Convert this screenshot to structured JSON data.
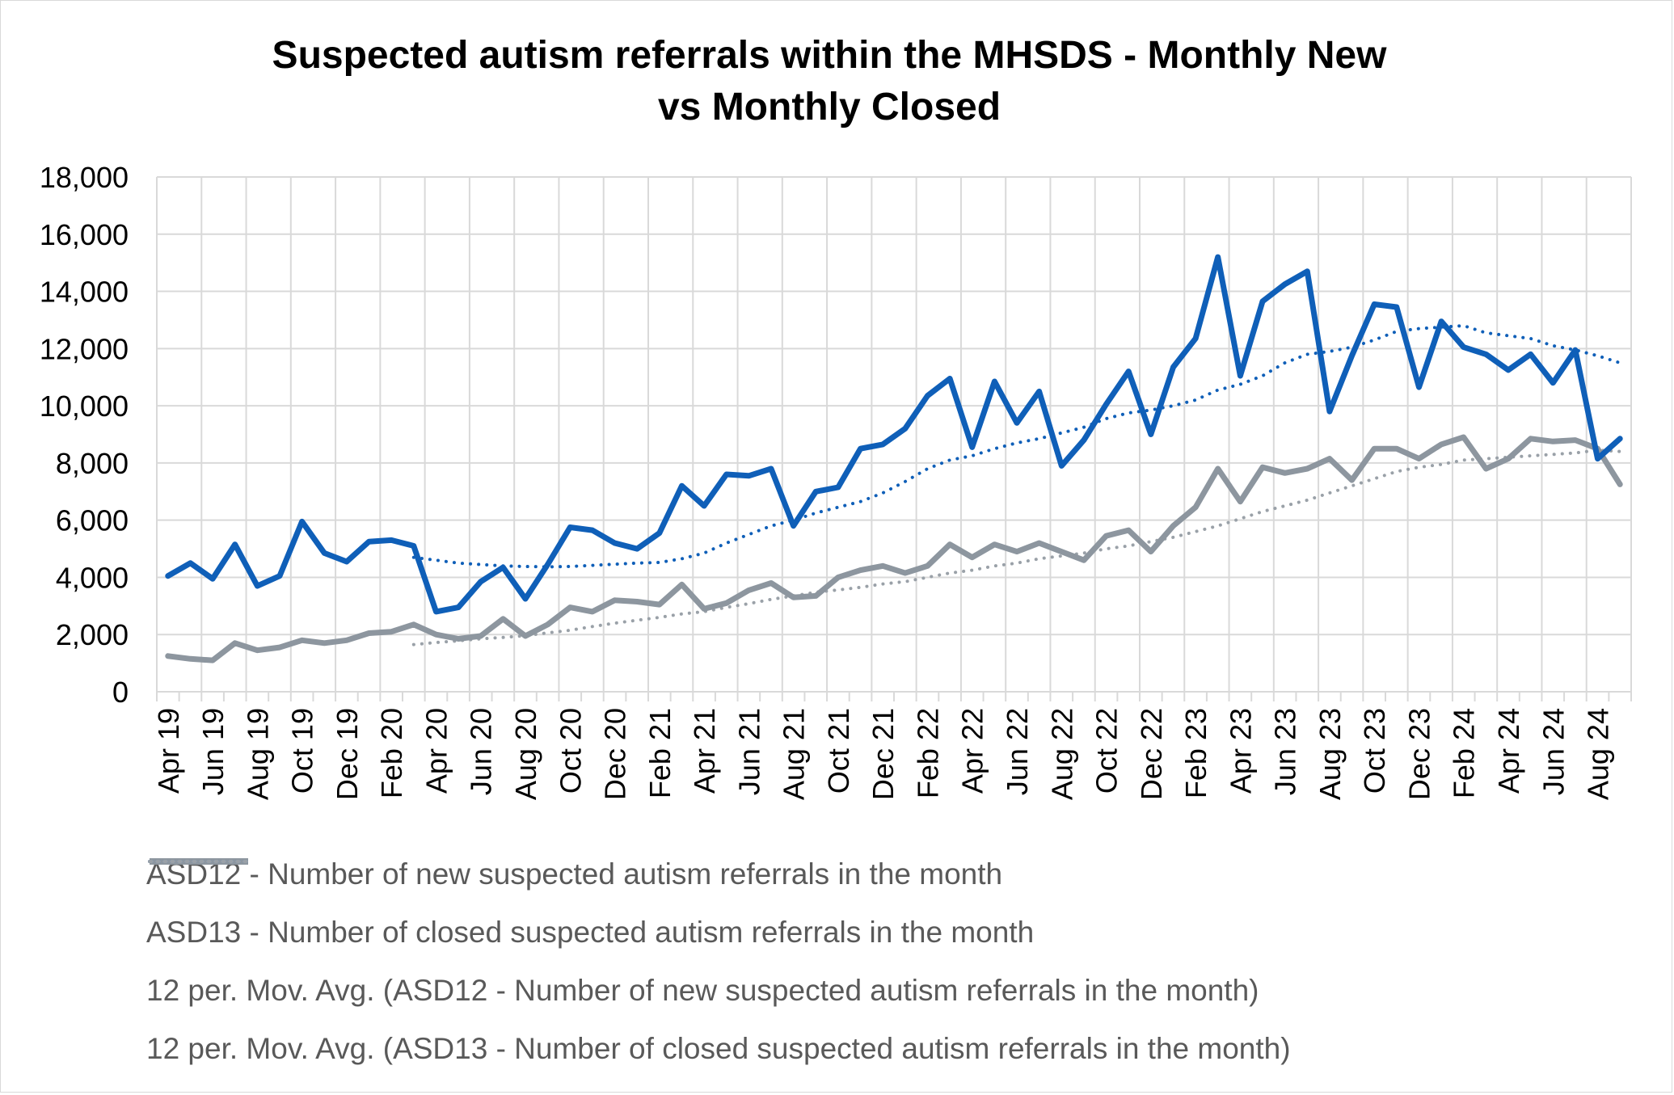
{
  "chart_data": {
    "type": "line",
    "title_line1": "Suspected autism referrals within the MHSDS - Monthly New",
    "title_line2": "vs Monthly Closed",
    "xlabel": "",
    "ylabel": "",
    "ylim": [
      0,
      18000
    ],
    "yticks": [
      0,
      2000,
      4000,
      6000,
      8000,
      10000,
      12000,
      14000,
      16000,
      18000
    ],
    "ytick_labels": [
      "0",
      "2,000",
      "4,000",
      "6,000",
      "8,000",
      "10,000",
      "12,000",
      "14,000",
      "16,000",
      "18,000"
    ],
    "grid": true,
    "legend_position": "bottom",
    "x_tick_labels": [
      "Apr 19",
      "Jun 19",
      "Aug 19",
      "Oct 19",
      "Dec 19",
      "Feb 20",
      "Apr 20",
      "Jun 20",
      "Aug 20",
      "Oct 20",
      "Dec 20",
      "Feb 21",
      "Apr 21",
      "Jun 21",
      "Aug 21",
      "Oct 21",
      "Dec 21",
      "Feb 22",
      "Apr 22",
      "Jun 22",
      "Aug 22",
      "Oct 22",
      "Dec 22",
      "Feb 23",
      "Apr 23",
      "Jun 23",
      "Aug 23",
      "Oct 23",
      "Dec 23",
      "Feb 24",
      "Apr 24",
      "Jun 24",
      "Aug 24"
    ],
    "months": [
      "Apr 19",
      "May 19",
      "Jun 19",
      "Jul 19",
      "Aug 19",
      "Sep 19",
      "Oct 19",
      "Nov 19",
      "Dec 19",
      "Jan 20",
      "Feb 20",
      "Mar 20",
      "Apr 20",
      "May 20",
      "Jun 20",
      "Jul 20",
      "Aug 20",
      "Sep 20",
      "Oct 20",
      "Nov 20",
      "Dec 20",
      "Jan 21",
      "Feb 21",
      "Mar 21",
      "Apr 21",
      "May 21",
      "Jun 21",
      "Jul 21",
      "Aug 21",
      "Sep 21",
      "Oct 21",
      "Nov 21",
      "Dec 21",
      "Jan 22",
      "Feb 22",
      "Mar 22",
      "Apr 22",
      "May 22",
      "Jun 22",
      "Jul 22",
      "Aug 22",
      "Sep 22",
      "Oct 22",
      "Nov 22",
      "Dec 22",
      "Jan 23",
      "Feb 23",
      "Mar 23",
      "Apr 23",
      "May 23",
      "Jun 23",
      "Jul 23",
      "Aug 23",
      "Sep 23",
      "Oct 23",
      "Nov 23",
      "Dec 23",
      "Jan 24",
      "Feb 24",
      "Mar 24",
      "Apr 24",
      "May 24",
      "Jun 24",
      "Jul 24",
      "Aug 24",
      "Sep 24"
    ],
    "series": [
      {
        "name": "ASD12 - Number of new suspected autism referrals in the month",
        "color": "#0f5fb8",
        "style": "solid",
        "values": [
          4050,
          4500,
          3950,
          5150,
          3700,
          4050,
          5950,
          4850,
          4550,
          5250,
          5300,
          5100,
          2800,
          2950,
          3850,
          4350,
          3250,
          4450,
          5750,
          5650,
          5200,
          5000,
          5550,
          7200,
          6500,
          7600,
          7550,
          7800,
          5800,
          7000,
          7150,
          8500,
          8650,
          9200,
          10350,
          10950,
          8550,
          10850,
          9400,
          10500,
          7900,
          8800,
          10050,
          11200,
          9000,
          11350,
          12350,
          15200,
          11050,
          13650,
          14250,
          14700,
          9800,
          11750,
          13550,
          13450,
          10650,
          12950,
          12050,
          11800,
          11250,
          11800,
          10800,
          11950,
          8150,
          8850
        ]
      },
      {
        "name": "ASD13 - Number of closed suspected autism referrals in the month",
        "color": "#8d969f",
        "style": "solid",
        "values": [
          1250,
          1150,
          1100,
          1700,
          1450,
          1550,
          1800,
          1700,
          1800,
          2050,
          2100,
          2350,
          2000,
          1850,
          1950,
          2550,
          1950,
          2350,
          2950,
          2800,
          3200,
          3150,
          3050,
          3750,
          2900,
          3100,
          3550,
          3800,
          3300,
          3350,
          4000,
          4250,
          4400,
          4150,
          4400,
          5150,
          4700,
          5150,
          4900,
          5200,
          4900,
          4600,
          5450,
          5650,
          4900,
          5800,
          6450,
          7800,
          6650,
          7850,
          7650,
          7800,
          8150,
          7400,
          8500,
          8500,
          8150,
          8650,
          8900,
          7800,
          8150,
          8850,
          8750,
          8800,
          8500,
          7250
        ]
      },
      {
        "name": "12 per. Mov. Avg. (ASD12 - Number of new suspected autism referrals in the month)",
        "color": "#0f5fb8",
        "style": "dotted",
        "values": [
          null,
          null,
          null,
          null,
          null,
          null,
          null,
          null,
          null,
          null,
          null,
          4700,
          4600,
          4500,
          4450,
          4400,
          4380,
          4370,
          4380,
          4420,
          4460,
          4500,
          4520,
          4650,
          4850,
          5200,
          5500,
          5800,
          6000,
          6250,
          6450,
          6650,
          6950,
          7350,
          7800,
          8100,
          8250,
          8500,
          8700,
          8850,
          9050,
          9250,
          9550,
          9750,
          9850,
          10000,
          10200,
          10550,
          10750,
          11050,
          11500,
          11800,
          11900,
          12050,
          12300,
          12600,
          12700,
          12750,
          12800,
          12550,
          12450,
          12350,
          12100,
          11950,
          11750,
          11500
        ]
      },
      {
        "name": "12 per. Mov. Avg. (ASD13 - Number of closed suspected autism referrals in the month)",
        "color": "#9aa1a8",
        "style": "dotted",
        "values": [
          null,
          null,
          null,
          null,
          null,
          null,
          null,
          null,
          null,
          null,
          null,
          1650,
          1720,
          1780,
          1850,
          1900,
          1960,
          2060,
          2150,
          2280,
          2400,
          2500,
          2600,
          2720,
          2800,
          2950,
          3080,
          3230,
          3350,
          3480,
          3560,
          3650,
          3770,
          3850,
          4000,
          4150,
          4250,
          4400,
          4500,
          4650,
          4750,
          4850,
          5000,
          5100,
          5250,
          5400,
          5600,
          5800,
          6050,
          6300,
          6500,
          6700,
          6950,
          7200,
          7450,
          7700,
          7850,
          7950,
          8100,
          8150,
          8200,
          8250,
          8300,
          8350,
          8450,
          8400
        ]
      }
    ]
  }
}
